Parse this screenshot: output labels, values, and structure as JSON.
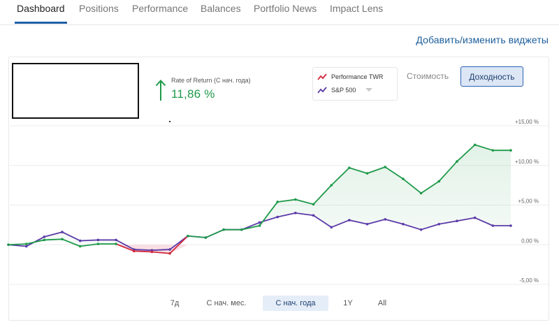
{
  "tabs": [
    {
      "label": "Dashboard",
      "active": true
    },
    {
      "label": "Positions",
      "active": false
    },
    {
      "label": "Performance",
      "active": false
    },
    {
      "label": "Balances",
      "active": false
    },
    {
      "label": "Portfolio News",
      "active": false
    },
    {
      "label": "Impact Lens",
      "active": false
    }
  ],
  "widgets_link": "Добавить/изменить виджеты",
  "summary": {
    "label": "Rate of Return (С нач. года)",
    "value": "11,86 %",
    "trend_icon": "arrow-up-icon",
    "trend_color": "#1f9a4a"
  },
  "legend": {
    "items": [
      {
        "label": "Performance TWR",
        "color": "#d0283c"
      },
      {
        "label": "S&P 500",
        "color": "#5b3aa8"
      }
    ]
  },
  "toggles": {
    "value_label": "Стоимость",
    "return_label": "Доходность",
    "selected": "return"
  },
  "ranges": [
    {
      "label": "7д",
      "active": false
    },
    {
      "label": "С нач. мес.",
      "active": false
    },
    {
      "label": "С нач. года",
      "active": true
    },
    {
      "label": "1Y",
      "active": false
    },
    {
      "label": "All",
      "active": false
    }
  ],
  "chart_data": {
    "type": "line",
    "ylim": [
      -5,
      15
    ],
    "yticks": [
      15,
      10,
      5,
      0,
      -5
    ],
    "ytick_labels": [
      "+15,00 %",
      "+10,00 %",
      "+5,00 %",
      "0,00 %",
      "-5,00 %"
    ],
    "grid": true,
    "series": [
      {
        "name": "Performance TWR",
        "color": "#1f9a4a",
        "negative_color": "#d0283c",
        "values": [
          0.0,
          0.1,
          0.6,
          0.7,
          -0.2,
          0.1,
          0.1,
          -0.8,
          -0.9,
          -1.1,
          1.1,
          0.9,
          1.9,
          1.9,
          2.4,
          5.4,
          5.7,
          5.1,
          7.5,
          9.7,
          9.0,
          9.8,
          8.3,
          6.5,
          8.0,
          10.5,
          12.6,
          11.9,
          11.9
        ]
      },
      {
        "name": "S&P 500",
        "color": "#5b3aa8",
        "values": [
          0.0,
          -0.2,
          1.0,
          1.6,
          0.5,
          0.6,
          0.6,
          -0.6,
          -0.7,
          -0.6,
          1.1,
          0.9,
          1.9,
          1.9,
          2.8,
          3.5,
          4.0,
          3.7,
          2.2,
          3.1,
          2.6,
          3.2,
          2.6,
          1.9,
          2.6,
          3.0,
          3.4,
          2.4,
          2.4
        ]
      }
    ]
  }
}
